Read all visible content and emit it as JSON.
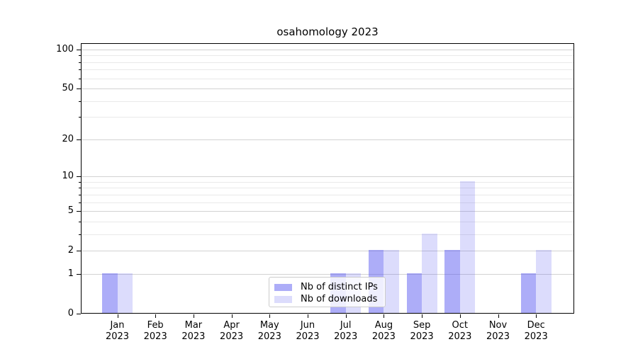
{
  "chart_data": {
    "type": "bar",
    "title": "osahomology 2023",
    "categories": [
      "Jan",
      "Feb",
      "Mar",
      "Apr",
      "May",
      "Jun",
      "Jul",
      "Aug",
      "Sep",
      "Oct",
      "Nov",
      "Dec"
    ],
    "year_label": "2023",
    "series": [
      {
        "name": "Nb of distinct IPs",
        "color": "#5050f0",
        "alpha": 0.47,
        "values": [
          1,
          0,
          0,
          0,
          0,
          0,
          1,
          2,
          1,
          2,
          0,
          1
        ]
      },
      {
        "name": "Nb of downloads",
        "color": "#5050f0",
        "alpha": 0.2,
        "values": [
          1,
          0,
          0,
          0,
          0,
          0,
          1,
          2,
          3,
          9,
          0,
          2
        ]
      }
    ],
    "y_axis": {
      "scale": "log1p",
      "ticks": [
        0,
        1,
        2,
        5,
        10,
        20,
        50,
        100
      ],
      "minor_ticks": [
        3,
        4,
        6,
        7,
        8,
        9,
        30,
        40,
        60,
        70,
        80,
        90
      ],
      "range": [
        0,
        112
      ]
    },
    "x_axis": {
      "label": "",
      "tick_format": "month-over-year"
    },
    "grid": true,
    "legend_position": "lower center"
  }
}
